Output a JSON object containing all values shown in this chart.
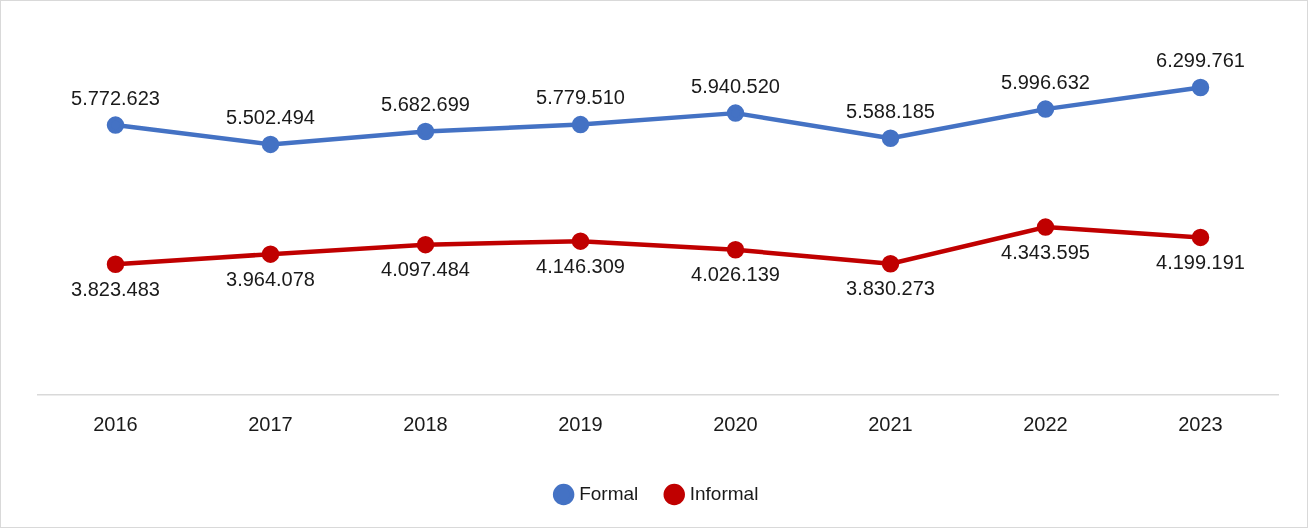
{
  "chart_data": {
    "type": "line",
    "categories": [
      "2016",
      "2017",
      "2018",
      "2019",
      "2020",
      "2021",
      "2022",
      "2023"
    ],
    "series": [
      {
        "name": "Formal",
        "color": "#4472c4",
        "values": [
          5772623,
          5502494,
          5682699,
          5779510,
          5940520,
          5588185,
          5996632,
          6299761
        ],
        "value_labels": [
          "5.772.623",
          "5.502.494",
          "5.682.699",
          "5.779.510",
          "5.940.520",
          "5.588.185",
          "5.996.632",
          "6.299.761"
        ]
      },
      {
        "name": "Informal",
        "color": "#c00000",
        "values": [
          3823483,
          3964078,
          4097484,
          4146309,
          4026139,
          3830273,
          4343595,
          4199191
        ],
        "value_labels": [
          "3.823.483",
          "3.964.078",
          "4.097.484",
          "4.146.309",
          "4.026.139",
          "3.830.273",
          "4.343.595",
          "4.199.191"
        ]
      }
    ],
    "legend": "bottom",
    "marker": "circle",
    "line_style": "solid",
    "grid": false
  }
}
